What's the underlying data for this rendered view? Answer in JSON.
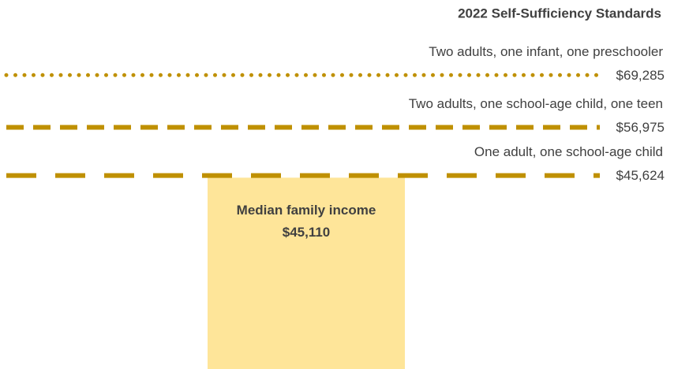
{
  "chart_data": {
    "type": "bar",
    "title": "2022 Self-Sufficiency Standards",
    "categories": [
      "Median family income"
    ],
    "values": [
      45110
    ],
    "value_labels": [
      "$45,110"
    ],
    "color": "#fee599",
    "ylim": [
      0,
      87000
    ],
    "reference_lines": [
      {
        "name": "Two adults, one infant, one preschooler",
        "value": 69285,
        "value_label": "$69,285",
        "style": "dotted"
      },
      {
        "name": "Two adults, one school-age child, one teen",
        "value": 56975,
        "value_label": "$56,975",
        "style": "dashed"
      },
      {
        "name": "One adult, one school-age child",
        "value": 45624,
        "value_label": "$45,624",
        "style": "long-dashed"
      }
    ],
    "line_color": "#bf9000"
  }
}
